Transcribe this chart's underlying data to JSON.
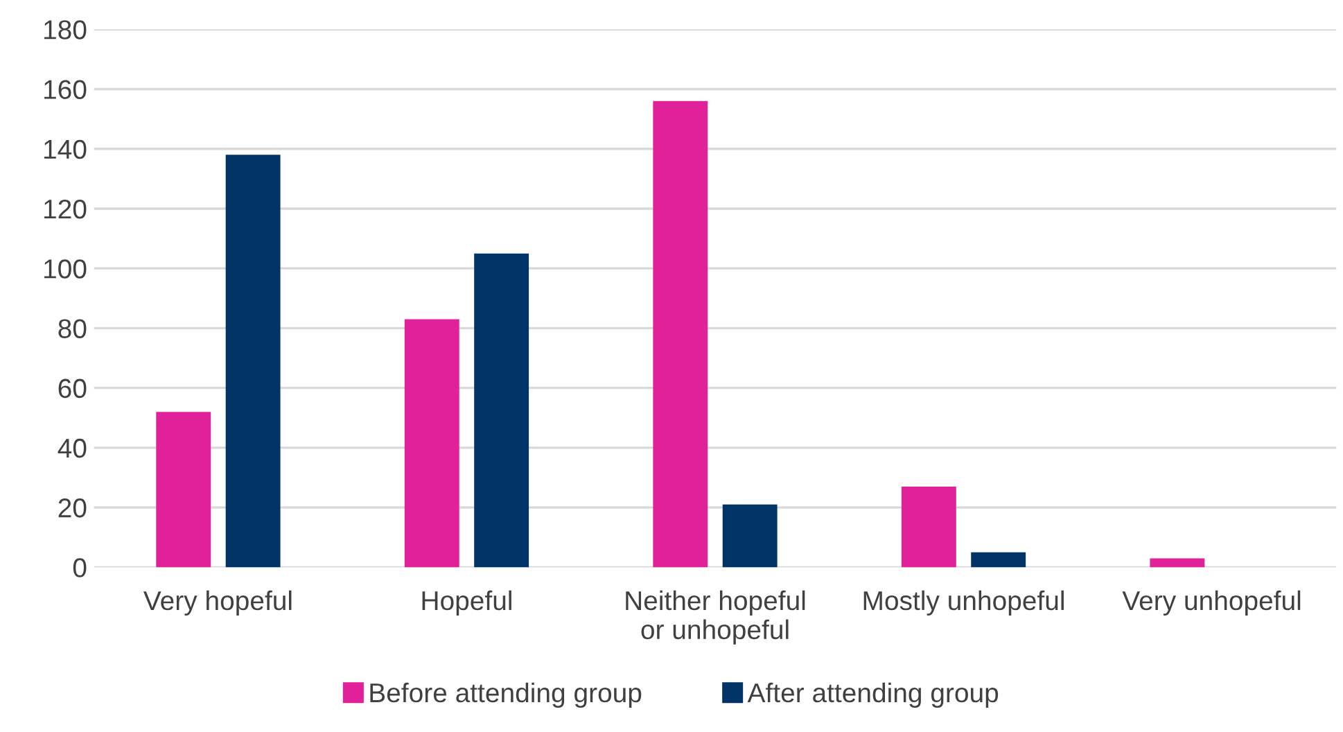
{
  "chart_data": {
    "type": "bar",
    "categories": [
      "Very hopeful",
      "Hopeful",
      "Neither hopeful\nor unhopeful",
      "Mostly unhopeful",
      "Very unhopeful"
    ],
    "series": [
      {
        "name": "Before attending group",
        "color": "#e0219a",
        "values": [
          52,
          83,
          156,
          27,
          3
        ]
      },
      {
        "name": "After attending group",
        "color": "#003366",
        "values": [
          138,
          105,
          21,
          5,
          0
        ]
      }
    ],
    "ylim": [
      0,
      180
    ],
    "yticks": [
      0,
      20,
      40,
      60,
      80,
      100,
      120,
      140,
      160,
      180
    ],
    "grid": "y",
    "legend": "bottom"
  }
}
